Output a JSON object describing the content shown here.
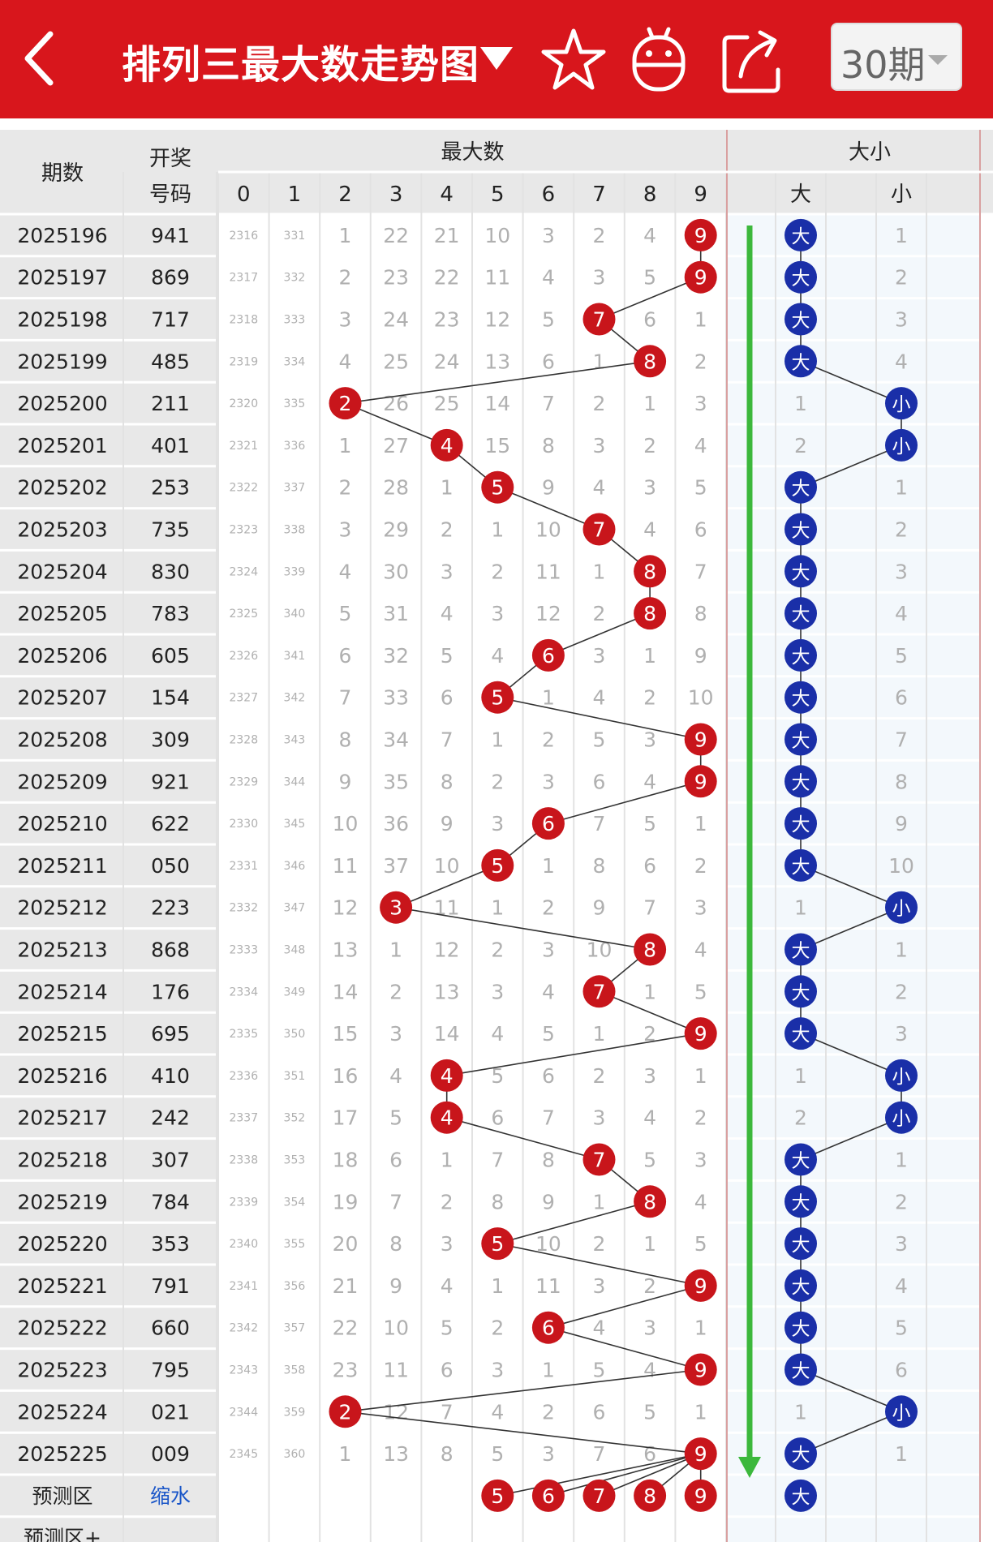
{
  "header": {
    "title": "排列三最大数走势图",
    "period_value": "30期",
    "icons": [
      "back-arrow-icon",
      "dropdown-triangle-icon",
      "star-icon",
      "robot-icon",
      "share-icon",
      "chevron-down-icon"
    ]
  },
  "table": {
    "col_issue": "期数",
    "col_code_line1": "开奖",
    "col_code_line2": "号码",
    "group_max": "最大数",
    "group_size": "大小",
    "digit_headers": [
      "0",
      "1",
      "2",
      "3",
      "4",
      "5",
      "6",
      "7",
      "8",
      "9"
    ],
    "size_headers": [
      "大",
      "小"
    ],
    "predict_row_label": "预测区",
    "predict_row_link": "缩水",
    "predict_row2_label": "预测区+",
    "predict_max_balls": [
      "5",
      "6",
      "7",
      "8",
      "9"
    ],
    "predict_size_ball": "大",
    "rows": [
      {
        "issue": "2025196",
        "code": "941",
        "cells": [
          "2316",
          "331",
          "1",
          "22",
          "21",
          "10",
          "3",
          "2",
          "4",
          "9"
        ],
        "max": 9,
        "size": "大",
        "big": "大",
        "small": "1"
      },
      {
        "issue": "2025197",
        "code": "869",
        "cells": [
          "2317",
          "332",
          "2",
          "23",
          "22",
          "11",
          "4",
          "3",
          "5",
          "9"
        ],
        "max": 9,
        "size": "大",
        "big": "大",
        "small": "2"
      },
      {
        "issue": "2025198",
        "code": "717",
        "cells": [
          "2318",
          "333",
          "3",
          "24",
          "23",
          "12",
          "5",
          "7",
          "6",
          "1"
        ],
        "max": 7,
        "size": "大",
        "big": "大",
        "small": "3"
      },
      {
        "issue": "2025199",
        "code": "485",
        "cells": [
          "2319",
          "334",
          "4",
          "25",
          "24",
          "13",
          "6",
          "1",
          "8",
          "2"
        ],
        "max": 8,
        "size": "大",
        "big": "大",
        "small": "4"
      },
      {
        "issue": "2025200",
        "code": "211",
        "cells": [
          "2320",
          "335",
          "2",
          "26",
          "25",
          "14",
          "7",
          "2",
          "1",
          "3"
        ],
        "max": 2,
        "size": "小",
        "big": "1",
        "small": "小"
      },
      {
        "issue": "2025201",
        "code": "401",
        "cells": [
          "2321",
          "336",
          "1",
          "27",
          "4",
          "15",
          "8",
          "3",
          "2",
          "4"
        ],
        "max": 4,
        "size": "小",
        "big": "2",
        "small": "小"
      },
      {
        "issue": "2025202",
        "code": "253",
        "cells": [
          "2322",
          "337",
          "2",
          "28",
          "1",
          "5",
          "9",
          "4",
          "3",
          "5"
        ],
        "max": 5,
        "size": "大",
        "big": "大",
        "small": "1"
      },
      {
        "issue": "2025203",
        "code": "735",
        "cells": [
          "2323",
          "338",
          "3",
          "29",
          "2",
          "1",
          "10",
          "7",
          "4",
          "6"
        ],
        "max": 7,
        "size": "大",
        "big": "大",
        "small": "2"
      },
      {
        "issue": "2025204",
        "code": "830",
        "cells": [
          "2324",
          "339",
          "4",
          "30",
          "3",
          "2",
          "11",
          "1",
          "8",
          "7"
        ],
        "max": 8,
        "size": "大",
        "big": "大",
        "small": "3"
      },
      {
        "issue": "2025205",
        "code": "783",
        "cells": [
          "2325",
          "340",
          "5",
          "31",
          "4",
          "3",
          "12",
          "2",
          "8",
          "8"
        ],
        "max": 8,
        "size": "大",
        "big": "大",
        "small": "4"
      },
      {
        "issue": "2025206",
        "code": "605",
        "cells": [
          "2326",
          "341",
          "6",
          "32",
          "5",
          "4",
          "6",
          "3",
          "1",
          "9"
        ],
        "max": 6,
        "size": "大",
        "big": "大",
        "small": "5"
      },
      {
        "issue": "2025207",
        "code": "154",
        "cells": [
          "2327",
          "342",
          "7",
          "33",
          "6",
          "5",
          "1",
          "4",
          "2",
          "10"
        ],
        "max": 5,
        "size": "大",
        "big": "大",
        "small": "6"
      },
      {
        "issue": "2025208",
        "code": "309",
        "cells": [
          "2328",
          "343",
          "8",
          "34",
          "7",
          "1",
          "2",
          "5",
          "3",
          "9"
        ],
        "max": 9,
        "size": "大",
        "big": "大",
        "small": "7"
      },
      {
        "issue": "2025209",
        "code": "921",
        "cells": [
          "2329",
          "344",
          "9",
          "35",
          "8",
          "2",
          "3",
          "6",
          "4",
          "9"
        ],
        "max": 9,
        "size": "大",
        "big": "大",
        "small": "8"
      },
      {
        "issue": "2025210",
        "code": "622",
        "cells": [
          "2330",
          "345",
          "10",
          "36",
          "9",
          "3",
          "6",
          "7",
          "5",
          "1"
        ],
        "max": 6,
        "size": "大",
        "big": "大",
        "small": "9"
      },
      {
        "issue": "2025211",
        "code": "050",
        "cells": [
          "2331",
          "346",
          "11",
          "37",
          "10",
          "5",
          "1",
          "8",
          "6",
          "2"
        ],
        "max": 5,
        "size": "大",
        "big": "大",
        "small": "10"
      },
      {
        "issue": "2025212",
        "code": "223",
        "cells": [
          "2332",
          "347",
          "12",
          "3",
          "11",
          "1",
          "2",
          "9",
          "7",
          "3"
        ],
        "max": 3,
        "size": "小",
        "big": "1",
        "small": "小"
      },
      {
        "issue": "2025213",
        "code": "868",
        "cells": [
          "2333",
          "348",
          "13",
          "1",
          "12",
          "2",
          "3",
          "10",
          "8",
          "4"
        ],
        "max": 8,
        "size": "大",
        "big": "大",
        "small": "1"
      },
      {
        "issue": "2025214",
        "code": "176",
        "cells": [
          "2334",
          "349",
          "14",
          "2",
          "13",
          "3",
          "4",
          "7",
          "1",
          "5"
        ],
        "max": 7,
        "size": "大",
        "big": "大",
        "small": "2"
      },
      {
        "issue": "2025215",
        "code": "695",
        "cells": [
          "2335",
          "350",
          "15",
          "3",
          "14",
          "4",
          "5",
          "1",
          "2",
          "9"
        ],
        "max": 9,
        "size": "大",
        "big": "大",
        "small": "3"
      },
      {
        "issue": "2025216",
        "code": "410",
        "cells": [
          "2336",
          "351",
          "16",
          "4",
          "4",
          "5",
          "6",
          "2",
          "3",
          "1"
        ],
        "max": 4,
        "size": "小",
        "big": "1",
        "small": "小"
      },
      {
        "issue": "2025217",
        "code": "242",
        "cells": [
          "2337",
          "352",
          "17",
          "5",
          "4",
          "6",
          "7",
          "3",
          "4",
          "2"
        ],
        "max": 4,
        "size": "小",
        "big": "2",
        "small": "小"
      },
      {
        "issue": "2025218",
        "code": "307",
        "cells": [
          "2338",
          "353",
          "18",
          "6",
          "1",
          "7",
          "8",
          "7",
          "5",
          "3"
        ],
        "max": 7,
        "size": "大",
        "big": "大",
        "small": "1"
      },
      {
        "issue": "2025219",
        "code": "784",
        "cells": [
          "2339",
          "354",
          "19",
          "7",
          "2",
          "8",
          "9",
          "1",
          "8",
          "4"
        ],
        "max": 8,
        "size": "大",
        "big": "大",
        "small": "2"
      },
      {
        "issue": "2025220",
        "code": "353",
        "cells": [
          "2340",
          "355",
          "20",
          "8",
          "3",
          "5",
          "10",
          "2",
          "1",
          "5"
        ],
        "max": 5,
        "size": "大",
        "big": "大",
        "small": "3"
      },
      {
        "issue": "2025221",
        "code": "791",
        "cells": [
          "2341",
          "356",
          "21",
          "9",
          "4",
          "1",
          "11",
          "3",
          "2",
          "9"
        ],
        "max": 9,
        "size": "大",
        "big": "大",
        "small": "4"
      },
      {
        "issue": "2025222",
        "code": "660",
        "cells": [
          "2342",
          "357",
          "22",
          "10",
          "5",
          "2",
          "6",
          "4",
          "3",
          "1"
        ],
        "max": 6,
        "size": "大",
        "big": "大",
        "small": "5"
      },
      {
        "issue": "2025223",
        "code": "795",
        "cells": [
          "2343",
          "358",
          "23",
          "11",
          "6",
          "3",
          "1",
          "5",
          "4",
          "9"
        ],
        "max": 9,
        "size": "大",
        "big": "大",
        "small": "6"
      },
      {
        "issue": "2025224",
        "code": "021",
        "cells": [
          "2344",
          "359",
          "2",
          "12",
          "7",
          "4",
          "2",
          "6",
          "5",
          "1"
        ],
        "max": 2,
        "size": "小",
        "big": "1",
        "small": "小"
      },
      {
        "issue": "2025225",
        "code": "009",
        "cells": [
          "2345",
          "360",
          "1",
          "13",
          "8",
          "5",
          "3",
          "7",
          "6",
          "9"
        ],
        "max": 9,
        "size": "大",
        "big": "大",
        "small": "1"
      }
    ]
  },
  "colors": {
    "topbar": "#d8161c",
    "red_ball": "#c8151b",
    "blue_ball": "#1a2fa8",
    "trend_arrow": "#3cb83c",
    "header_bg": "#e8e8e8",
    "alt_row_bg": "#f3f8fc",
    "miss_text": "#b0b0b0"
  }
}
